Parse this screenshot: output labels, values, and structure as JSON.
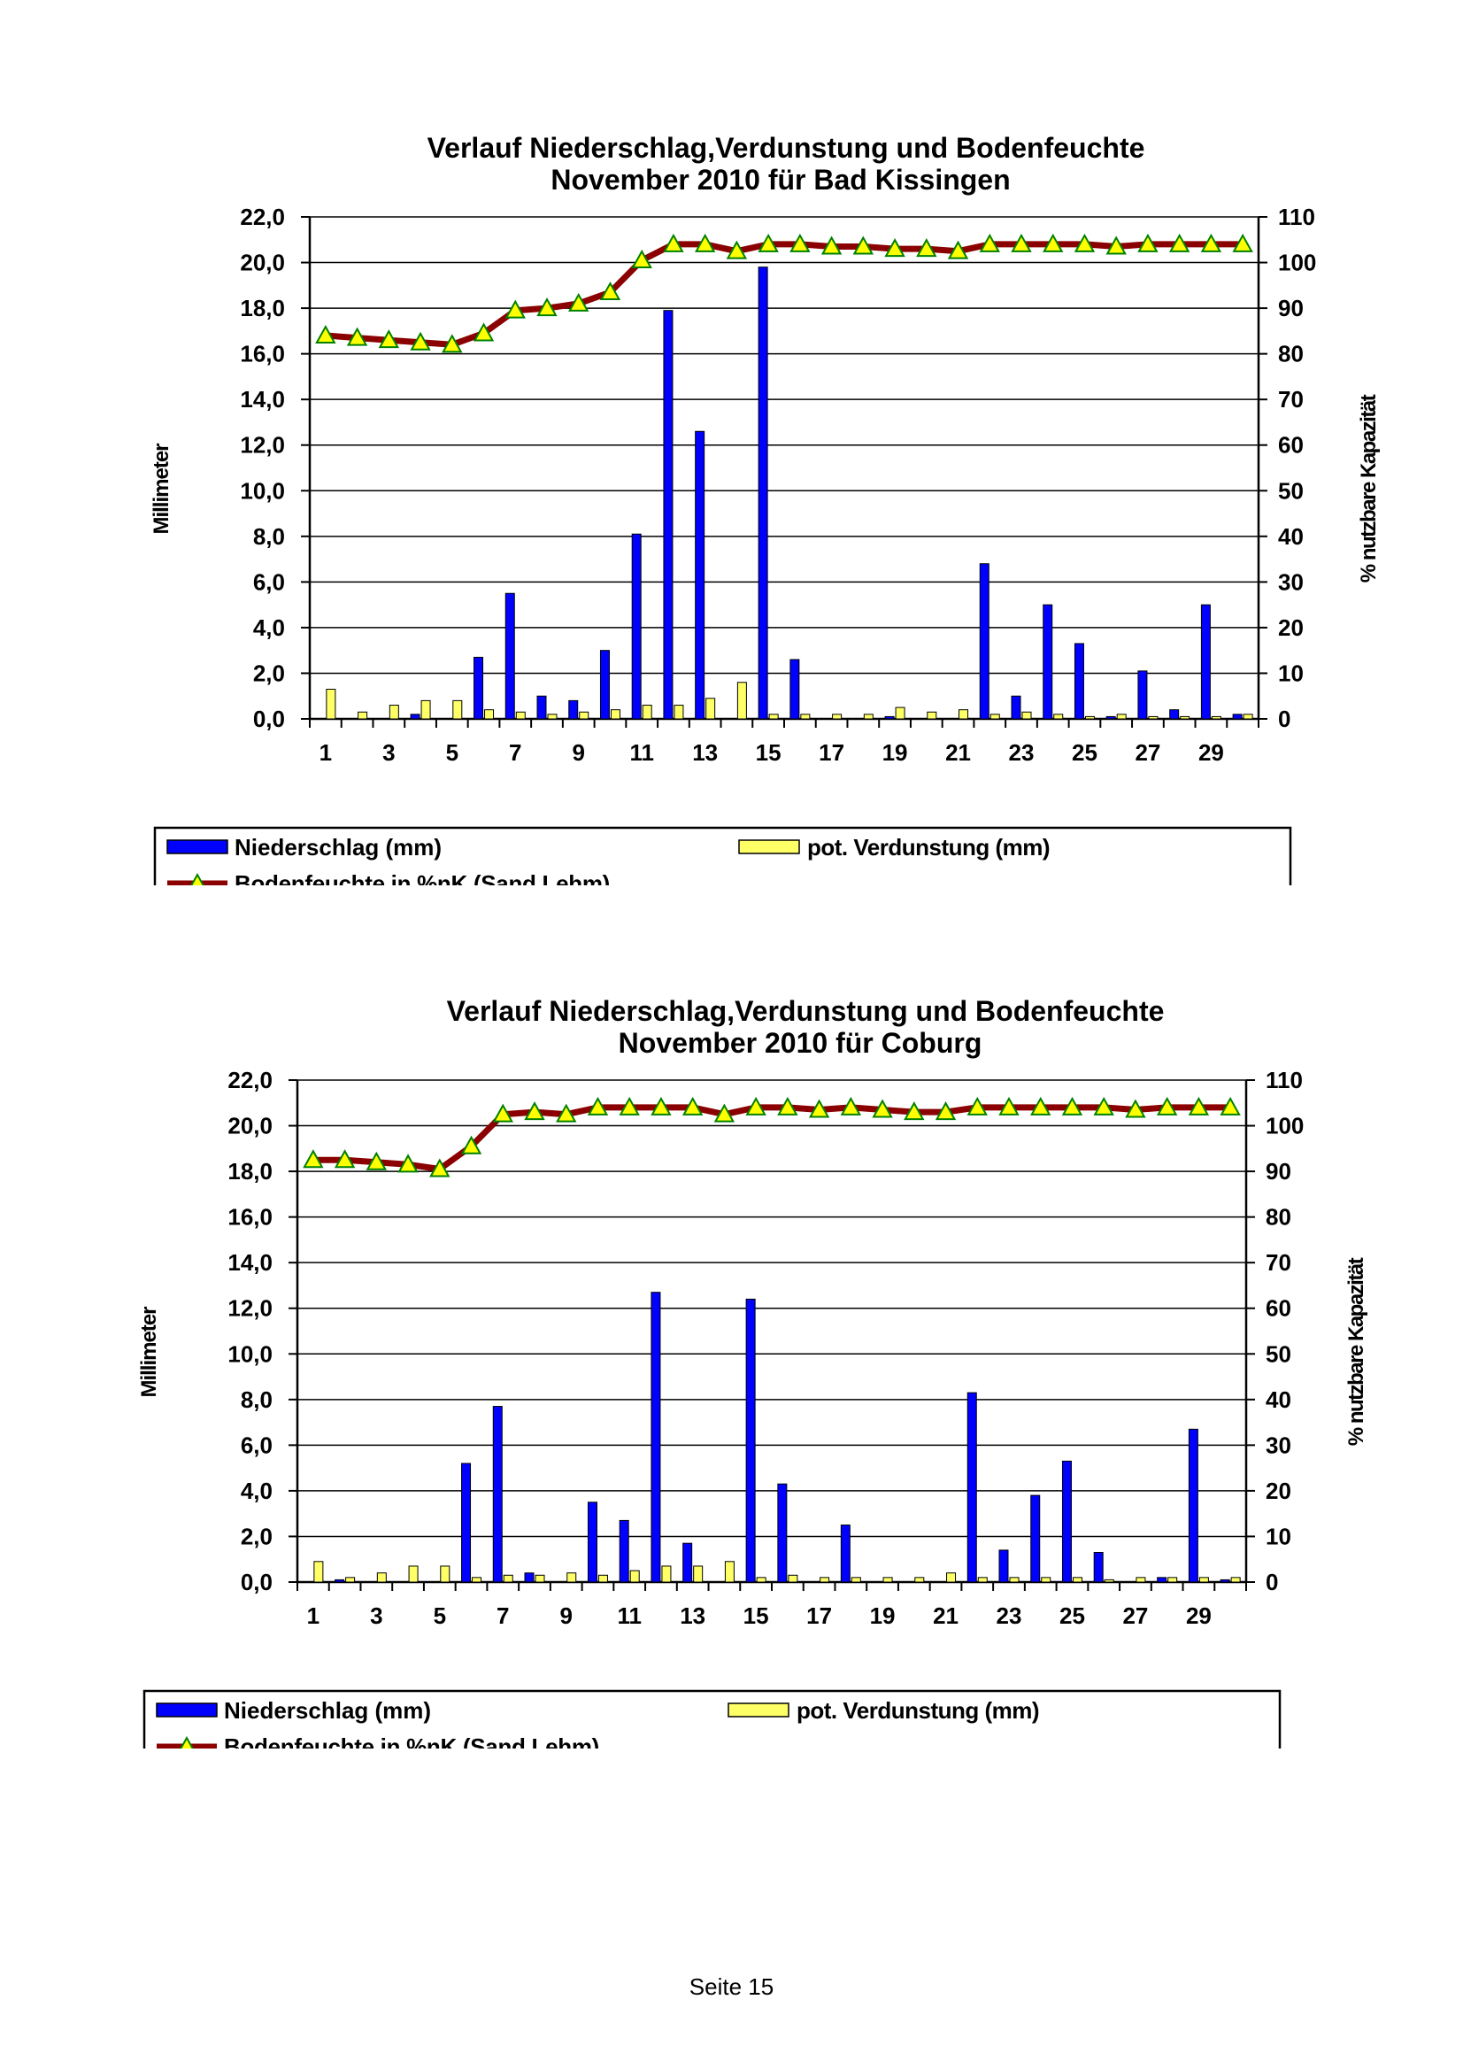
{
  "footer": {
    "page": "Seite 15"
  },
  "chart_data": [
    {
      "type": "bar",
      "title_line1": "Verlauf Niederschlag,Verdunstung und Bodenfeuchte",
      "title_line2": "November  2010 für Bad Kissingen",
      "ylabel": "Millimeter",
      "y2label": "% nutzbare Kapazität",
      "ylim": [
        0,
        22
      ],
      "y_ticks": [
        "0,0",
        "2,0",
        "4,0",
        "6,0",
        "8,0",
        "10,0",
        "12,0",
        "14,0",
        "16,0",
        "18,0",
        "20,0",
        "22,0"
      ],
      "y2lim": [
        0,
        110
      ],
      "y2_ticks": [
        "0",
        "10",
        "20",
        "30",
        "40",
        "50",
        "60",
        "70",
        "80",
        "90",
        "100",
        "110"
      ],
      "x_tick_labels": [
        "1",
        "3",
        "5",
        "7",
        "9",
        "11",
        "13",
        "15",
        "17",
        "19",
        "21",
        "23",
        "25",
        "27",
        "29"
      ],
      "grid": true,
      "legend": [
        {
          "name": "Niederschlag (mm)",
          "color": "#0000ff"
        },
        {
          "name": "pot. Verdunstung (mm)",
          "color": "#ffff66"
        },
        {
          "name": "Bodenfeuchte in %nK (Sand.Lehm)",
          "color": "#8b0000",
          "marker_color": "#ffff00"
        }
      ],
      "x": [
        1,
        2,
        3,
        4,
        5,
        6,
        7,
        8,
        9,
        10,
        11,
        12,
        13,
        14,
        15,
        16,
        17,
        18,
        19,
        20,
        21,
        22,
        23,
        24,
        25,
        26,
        27,
        28,
        29,
        30
      ],
      "series": [
        {
          "name": "Niederschlag (mm)",
          "axis": "left",
          "values": [
            0,
            0,
            0,
            0.2,
            0,
            2.7,
            5.5,
            1.0,
            0.8,
            3.0,
            8.1,
            17.9,
            12.6,
            0,
            19.8,
            2.6,
            0,
            0,
            0.1,
            0,
            0,
            6.8,
            1.0,
            5.0,
            3.3,
            0.1,
            2.1,
            0.4,
            5.0,
            0.2
          ]
        },
        {
          "name": "pot. Verdunstung (mm)",
          "axis": "left",
          "values": [
            1.3,
            0.3,
            0.6,
            0.8,
            0.8,
            0.4,
            0.3,
            0.2,
            0.3,
            0.4,
            0.6,
            0.6,
            0.9,
            1.6,
            0.2,
            0.2,
            0.2,
            0.2,
            0.5,
            0.3,
            0.4,
            0.2,
            0.3,
            0.2,
            0.1,
            0.2,
            0.1,
            0.1,
            0.1,
            0.2
          ]
        },
        {
          "name": "Bodenfeuchte in %nK (Sand.Lehm)",
          "axis": "right",
          "values": [
            84,
            83.5,
            83,
            82.5,
            82,
            84.5,
            89.5,
            90,
            91,
            93.5,
            100.5,
            104,
            104,
            102.5,
            104,
            104,
            103.5,
            103.5,
            103,
            103,
            102.5,
            104,
            104,
            104,
            104,
            103.5,
            104,
            104,
            104,
            104
          ]
        }
      ]
    },
    {
      "type": "bar",
      "title_line1": "Verlauf Niederschlag,Verdunstung und Bodenfeuchte",
      "title_line2": "November 2010 für Coburg",
      "ylabel": "Millimeter",
      "y2label": "% nutzbare Kapazität",
      "ylim": [
        0,
        22
      ],
      "y_ticks": [
        "0,0",
        "2,0",
        "4,0",
        "6,0",
        "8,0",
        "10,0",
        "12,0",
        "14,0",
        "16,0",
        "18,0",
        "20,0",
        "22,0"
      ],
      "y2lim": [
        0,
        110
      ],
      "y2_ticks": [
        "0",
        "10",
        "20",
        "30",
        "40",
        "50",
        "60",
        "70",
        "80",
        "90",
        "100",
        "110"
      ],
      "x_tick_labels": [
        "1",
        "3",
        "5",
        "7",
        "9",
        "11",
        "13",
        "15",
        "17",
        "19",
        "21",
        "23",
        "25",
        "27",
        "29"
      ],
      "grid": true,
      "legend": [
        {
          "name": "Niederschlag (mm)",
          "color": "#0000ff"
        },
        {
          "name": "pot. Verdunstung (mm)",
          "color": "#ffff66"
        },
        {
          "name": "Bodenfeuchte in %nK (Sand.Lehm)",
          "color": "#8b0000",
          "marker_color": "#ffff00"
        }
      ],
      "x": [
        1,
        2,
        3,
        4,
        5,
        6,
        7,
        8,
        9,
        10,
        11,
        12,
        13,
        14,
        15,
        16,
        17,
        18,
        19,
        20,
        21,
        22,
        23,
        24,
        25,
        26,
        27,
        28,
        29,
        30
      ],
      "series": [
        {
          "name": "Niederschlag (mm)",
          "axis": "left",
          "values": [
            0,
            0.1,
            0,
            0,
            0,
            5.2,
            7.7,
            0.4,
            0,
            3.5,
            2.7,
            12.7,
            1.7,
            0,
            12.4,
            4.3,
            0,
            2.5,
            0,
            0,
            0,
            8.3,
            1.4,
            3.8,
            5.3,
            1.3,
            0,
            0.2,
            6.7,
            0.1
          ]
        },
        {
          "name": "pot. Verdunstung (mm)",
          "axis": "left",
          "values": [
            0.9,
            0.2,
            0.4,
            0.7,
            0.7,
            0.2,
            0.3,
            0.3,
            0.4,
            0.3,
            0.5,
            0.7,
            0.7,
            0.9,
            0.2,
            0.3,
            0.2,
            0.2,
            0.2,
            0.2,
            0.4,
            0.2,
            0.2,
            0.2,
            0.2,
            0.1,
            0.2,
            0.2,
            0.2,
            0.2
          ]
        },
        {
          "name": "Bodenfeuchte in %nK (Sand.Lehm)",
          "axis": "right",
          "values": [
            92.5,
            92.5,
            92,
            91.5,
            90.5,
            95.5,
            102.5,
            103,
            102.5,
            104,
            104,
            104,
            104,
            102.5,
            104,
            104,
            103.5,
            104,
            103.5,
            103,
            103,
            104,
            104,
            104,
            104,
            104,
            103.5,
            104,
            104,
            104
          ]
        }
      ]
    }
  ]
}
